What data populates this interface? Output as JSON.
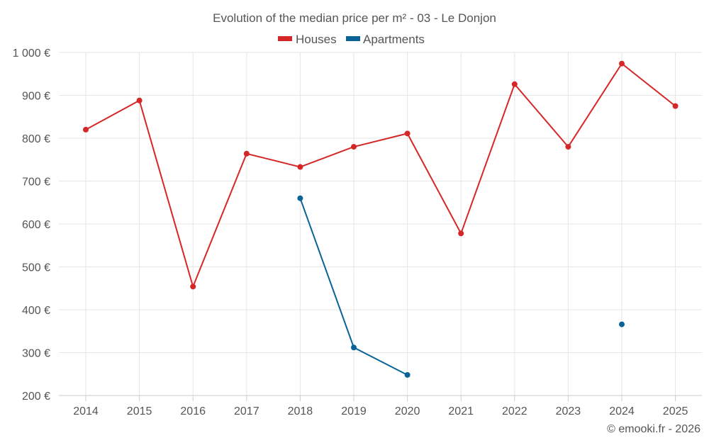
{
  "chart_data": {
    "type": "line",
    "title": "Evolution of the median price per m² - 03 - Le Donjon",
    "categories": [
      "2014",
      "2015",
      "2016",
      "2017",
      "2018",
      "2019",
      "2020",
      "2021",
      "2022",
      "2023",
      "2024",
      "2025"
    ],
    "series": [
      {
        "name": "Houses",
        "color": "#d62728",
        "values": [
          820,
          888,
          454,
          764,
          733,
          780,
          811,
          578,
          926,
          780,
          974,
          875
        ]
      },
      {
        "name": "Apartments",
        "color": "#0a6396",
        "values": [
          null,
          null,
          null,
          null,
          660,
          312,
          248,
          null,
          null,
          null,
          366,
          null
        ]
      }
    ],
    "ylim": [
      200,
      1000
    ],
    "yticks": [
      200,
      300,
      400,
      500,
      600,
      700,
      800,
      900,
      1000
    ],
    "ytick_labels": [
      "200 €",
      "300 €",
      "400 €",
      "500 €",
      "600 €",
      "700 €",
      "800 €",
      "900 €",
      "1 000 €"
    ],
    "xlabel": "",
    "ylabel": "",
    "legend_position": "top-center",
    "grid": true
  },
  "credit": "© emooki.fr - 2026"
}
